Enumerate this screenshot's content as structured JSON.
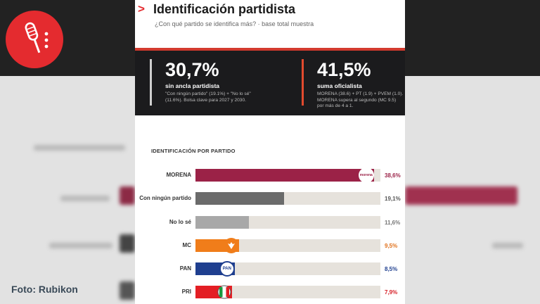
{
  "header": {
    "title": "Identificación partidista",
    "subtitle": "¿Con qué partido se identifica más? · base total muestra"
  },
  "stats": [
    {
      "value": "30,7%",
      "label": "sin ancla partidista",
      "note_lines": [
        "\"Con ningún partido\" (19.1%) + \"No lo sé\"",
        "(11.6%). Bolsa clave para 2027 y 2030."
      ],
      "accent": "#cfcfcf"
    },
    {
      "value": "41,5%",
      "label": "suma oficialista",
      "note_lines": [
        "MORENA (38.6) + PT (1.9) + PVEM (1.0).",
        "MORENA supera al segundo (MC 9.5)",
        "por más de 4 a 1."
      ],
      "accent": "#e24a2e"
    }
  ],
  "section_title": "IDENTIFICACIÓN POR PARTIDO",
  "chart_data": {
    "type": "bar",
    "orientation": "horizontal",
    "title": "IDENTIFICACIÓN POR PARTIDO",
    "categories": [
      "MORENA",
      "Con ningún partido",
      "No lo sé",
      "MC",
      "PAN",
      "PRI"
    ],
    "values": [
      38.6,
      19.1,
      11.6,
      9.5,
      8.5,
      7.9
    ],
    "value_labels": [
      "38,6%",
      "19,1%",
      "11,6%",
      "9,5%",
      "8,5%",
      "7,9%"
    ],
    "colors": [
      "#9b2247",
      "#6b6b6b",
      "#a8a8a8",
      "#f07d1a",
      "#1f3f8f",
      "#e31e24"
    ],
    "value_colors": [
      "#9b2247",
      "#555555",
      "#777777",
      "#e0701a",
      "#1f3f8f",
      "#d62027"
    ],
    "badges": [
      "morena",
      "",
      "",
      "mc-eagle-icon",
      "PAN",
      "pri-logo-icon"
    ],
    "xlim": [
      0,
      40
    ],
    "grid": false,
    "legend": "none"
  },
  "logo": {
    "icon": "microphone-icon",
    "color": "#e42b2f"
  },
  "credit": "Foto: Rubikon"
}
